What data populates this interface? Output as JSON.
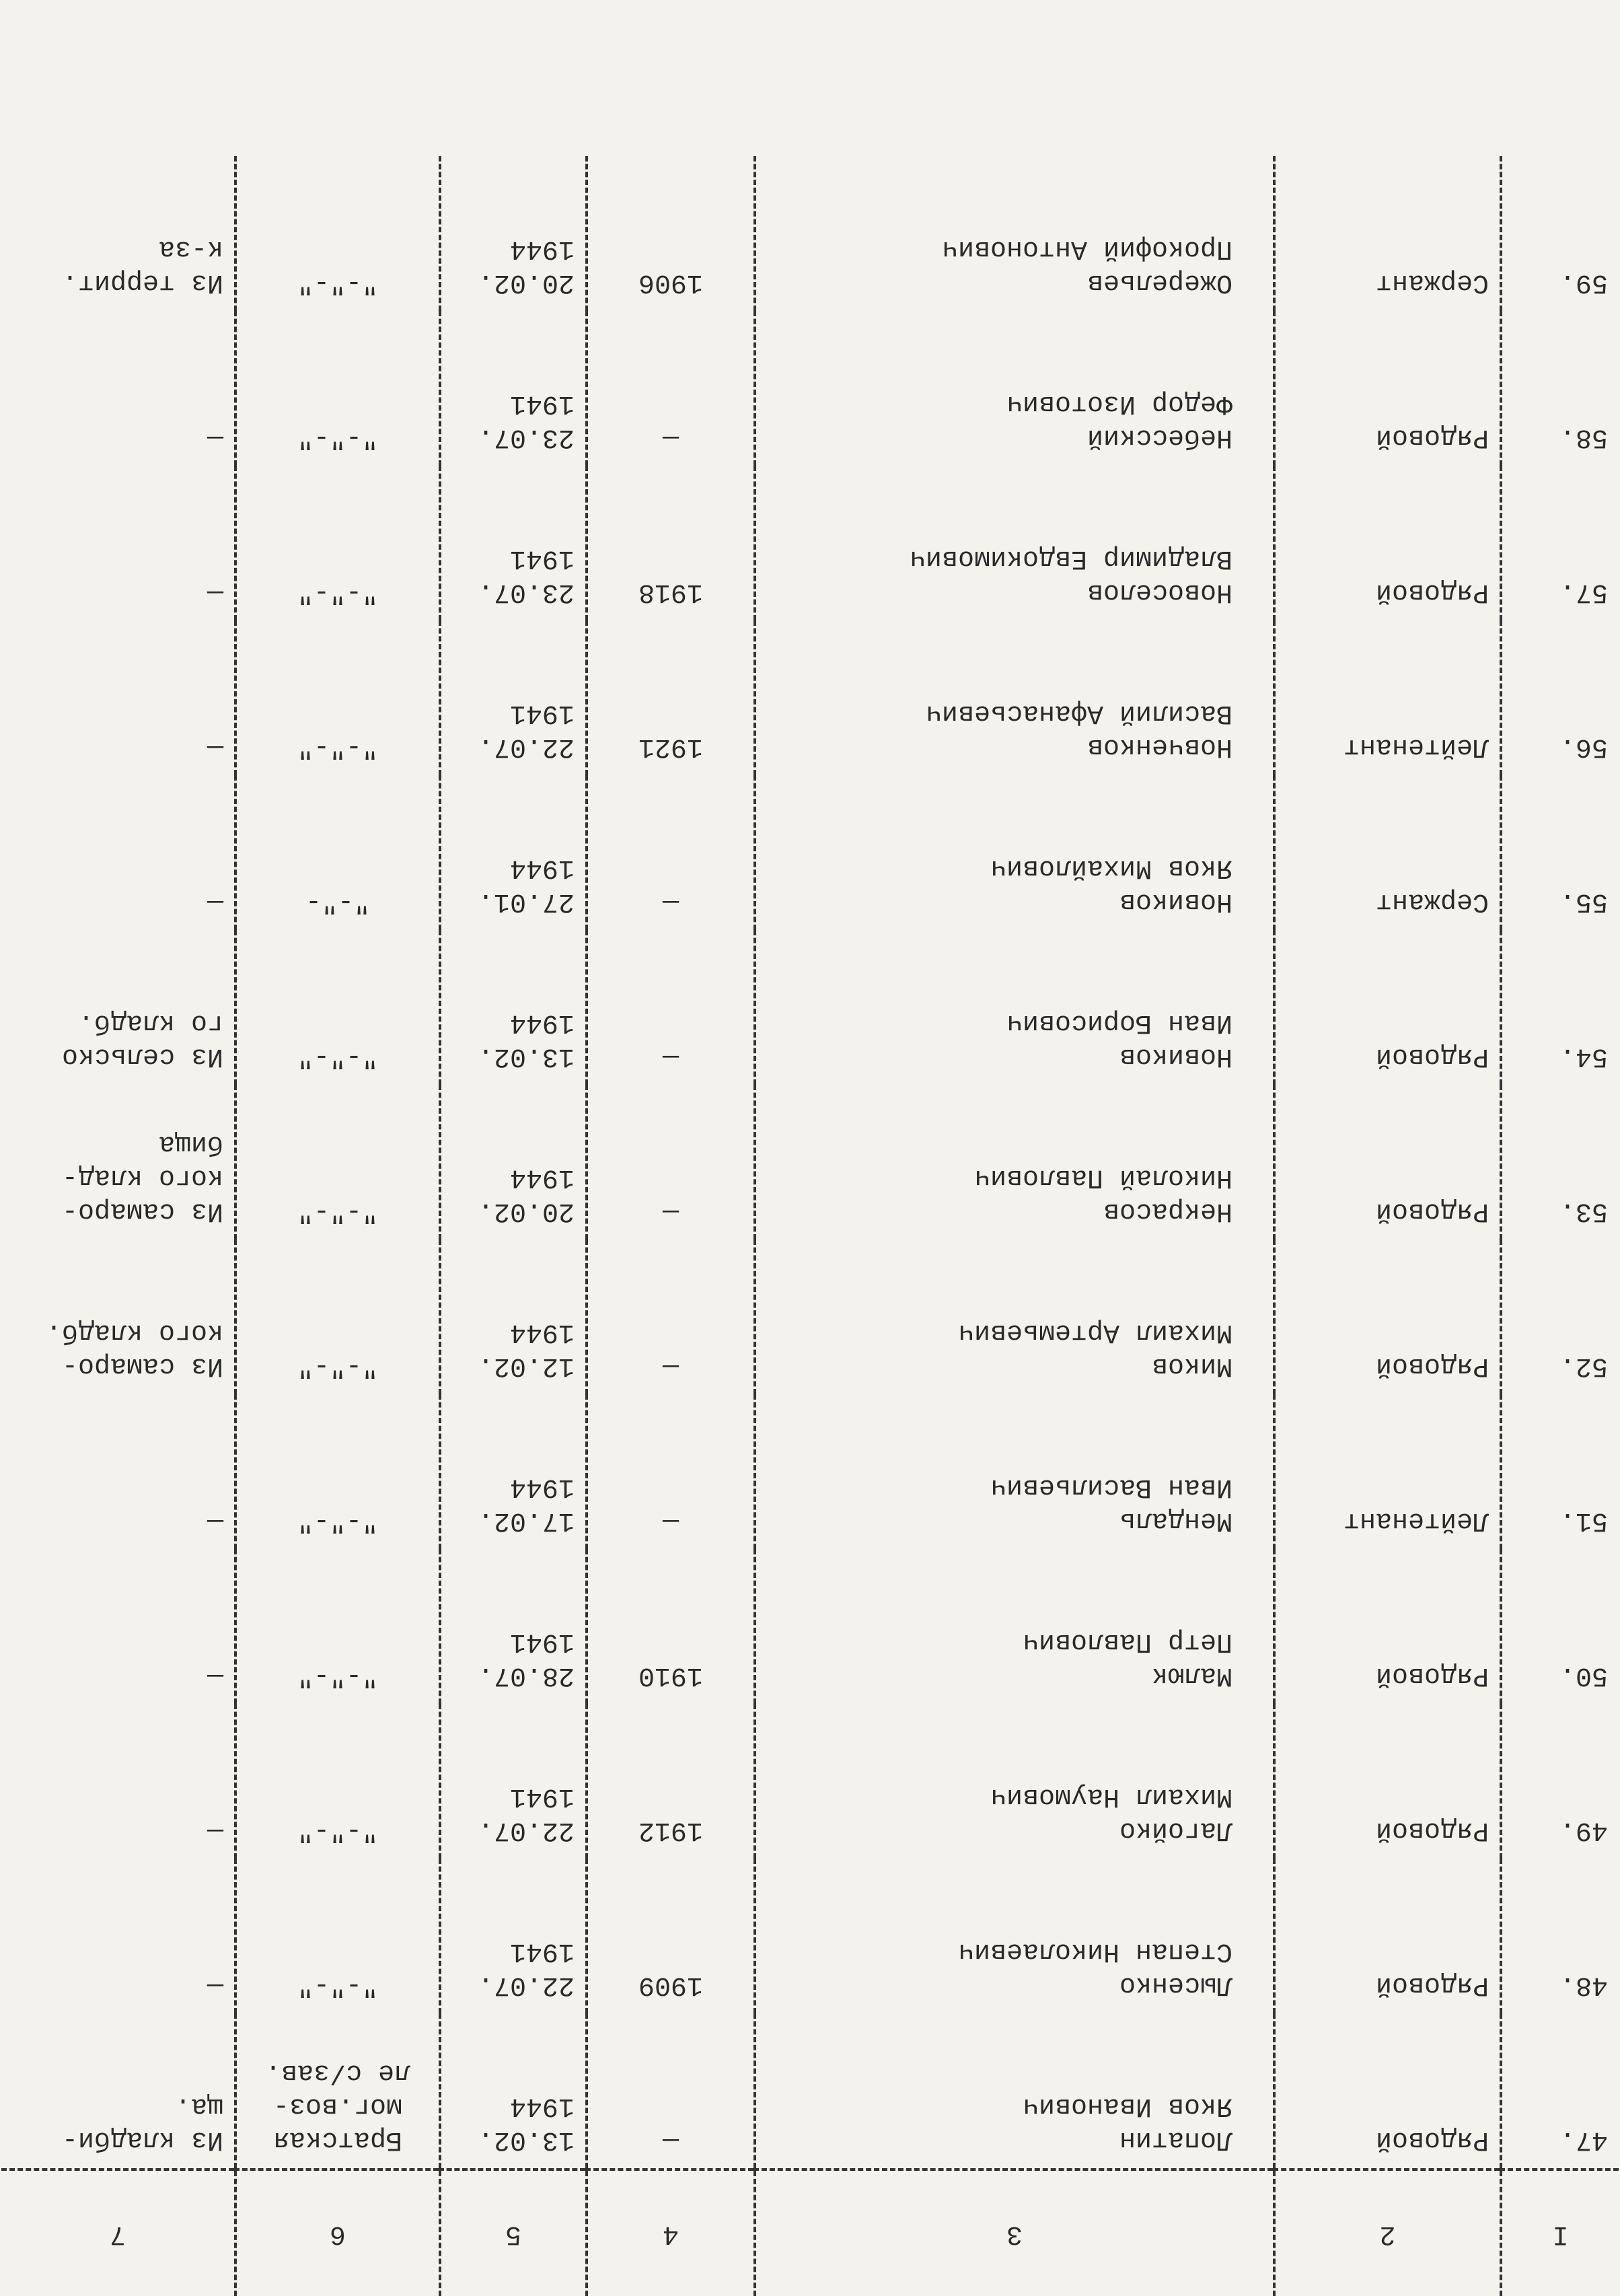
{
  "header": {
    "columns": [
      "I",
      "2",
      "3",
      "4",
      "5",
      "6",
      "7"
    ]
  },
  "table": {
    "rows": [
      [
        "47.",
        "Рядовой",
        "Лопатин\nЯков Иванович",
        "—",
        "13.02.\n1944",
        "Братская\nмог.воз-\nле с/зав.",
        "Из кладби-\nща."
      ],
      [
        "48.",
        "Рядовой",
        "Лысенко\nСтепан Николаевич",
        "1909",
        "22.07.\n1941",
        "\"-\"-\"",
        "—"
      ],
      [
        "49.",
        "Рядовой",
        "Лагойко\nМихаил Наумович",
        "1912",
        "22.07.\n1941",
        "\"-\"-\"",
        "—"
      ],
      [
        "50.",
        "Рядовой",
        "Малюк\nПетр Павлович",
        "1910",
        "28.07.\n1941",
        "\"-\"-\"",
        "—"
      ],
      [
        "51.",
        "Лейтенант",
        "Мендаль\nИван Васильевич",
        "—",
        "17.02.\n1944",
        "\"-\"-\"",
        "—"
      ],
      [
        "52.",
        "Рядовой",
        "Миков\nМихаил Артемьевич",
        "—",
        "12.02.\n1944",
        "\"-\"-\"",
        "Из самаро-\nкого кладб."
      ],
      [
        "53.",
        "Рядовой",
        "Некрасов\nНиколай Павлович",
        "—",
        "20.02.\n1944",
        "\"-\"-\"",
        "Из самаро-\nкого клад-\nбища"
      ],
      [
        "54.",
        "Рядовой",
        "Новиков\nИван Борисович",
        "—",
        "13.02.\n1944",
        "\"-\"-\"",
        "Из сельско\nго кладб."
      ],
      [
        "55.",
        "Сержант",
        "Новиков\nЯков Михайлович",
        "—",
        "27.01.\n1944",
        "\"-\"-",
        "—"
      ],
      [
        "56.",
        "Лейтенант",
        "Новченков\nВасилий Афанасьевич",
        "1921",
        "22.07.\n1941",
        "\"-\"-\"",
        "—"
      ],
      [
        "57.",
        "Рядовой",
        "Новоселов\nВладимир Евдокимович",
        "1918",
        "23.07.\n1941",
        "\"-\"-\"",
        "—"
      ],
      [
        "58.",
        "Рядовой",
        "Небесский\nФедор Изотович",
        "—",
        "23.07.\n1941",
        "\"-\"-\"",
        "—"
      ],
      [
        "59.",
        "Сержант",
        "Ожерельев\nПрокофий Антонович",
        "1906",
        "20.02.\n1944",
        "\"-\"-\"",
        "Из террит.\nк-за"
      ]
    ]
  }
}
